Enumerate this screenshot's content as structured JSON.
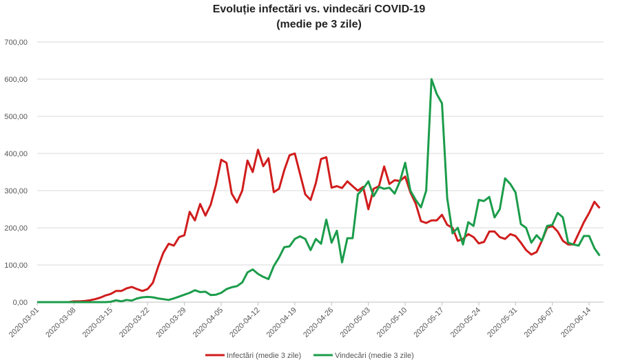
{
  "chart_data": {
    "type": "line",
    "title": "Evoluție infectări vs. vindecări COVID-19",
    "subtitle": "(medie pe 3 zile)",
    "xlabel": "",
    "ylabel": "",
    "ylim": [
      0,
      700
    ],
    "yticks": [
      "0,00",
      "100,00",
      "200,00",
      "300,00",
      "400,00",
      "500,00",
      "600,00",
      "700,00"
    ],
    "x_start": "2020-03-01",
    "x_end": "2020-06-16",
    "xticks": [
      "2020-03-01",
      "2020-03-08",
      "2020-03-15",
      "2020-03-22",
      "2020-03-29",
      "2020-04-05",
      "2020-04-12",
      "2020-04-19",
      "2020-04-26",
      "2020-05-03",
      "2020-05-10",
      "2020-05-17",
      "2020-05-24",
      "2020-05-31",
      "2020-06-07",
      "2020-06-14"
    ],
    "grid": true,
    "legend_position": "bottom",
    "series": [
      {
        "name": "Infectări (medie 3 zile)",
        "color": "#d01c1c",
        "values": [
          0,
          0,
          0,
          0,
          0,
          0,
          0,
          2,
          2,
          3,
          5,
          8,
          12,
          18,
          22,
          30,
          30,
          37,
          41,
          35,
          30,
          35,
          52,
          95,
          133,
          157,
          152,
          175,
          180,
          243,
          220,
          264,
          233,
          262,
          315,
          383,
          375,
          292,
          268,
          300,
          381,
          350,
          410,
          366,
          387,
          296,
          305,
          355,
          395,
          400,
          345,
          290,
          275,
          320,
          385,
          390,
          308,
          312,
          307,
          325,
          312,
          300,
          310,
          250,
          305,
          312,
          365,
          318,
          328,
          326,
          338,
          295,
          265,
          218,
          213,
          220,
          220,
          235,
          208,
          200,
          165,
          170,
          183,
          175,
          158,
          162,
          190,
          190,
          175,
          170,
          183,
          178,
          160,
          140,
          128,
          135,
          165,
          200,
          205,
          190,
          165,
          155,
          155,
          185,
          215,
          240,
          270,
          253
        ]
      },
      {
        "name": "Vindecări (medie 3 zile)",
        "color": "#1a9c4a",
        "values": [
          0,
          0,
          0,
          0,
          0,
          0,
          0,
          0,
          0,
          0,
          0,
          0,
          0,
          0,
          1,
          5,
          2,
          6,
          4,
          10,
          13,
          14,
          13,
          10,
          8,
          6,
          10,
          15,
          20,
          25,
          32,
          27,
          28,
          19,
          20,
          25,
          35,
          40,
          43,
          53,
          80,
          88,
          76,
          68,
          62,
          97,
          120,
          148,
          150,
          170,
          177,
          170,
          140,
          170,
          157,
          222,
          160,
          192,
          107,
          172,
          172,
          290,
          305,
          325,
          285,
          310,
          305,
          308,
          292,
          325,
          375,
          300,
          275,
          255,
          300,
          600,
          560,
          535,
          280,
          185,
          200,
          155,
          215,
          205,
          275,
          272,
          283,
          228,
          250,
          333,
          318,
          295,
          210,
          200,
          160,
          180,
          165,
          205,
          208,
          240,
          228,
          160,
          155,
          152,
          178,
          178,
          145,
          125
        ]
      }
    ]
  }
}
